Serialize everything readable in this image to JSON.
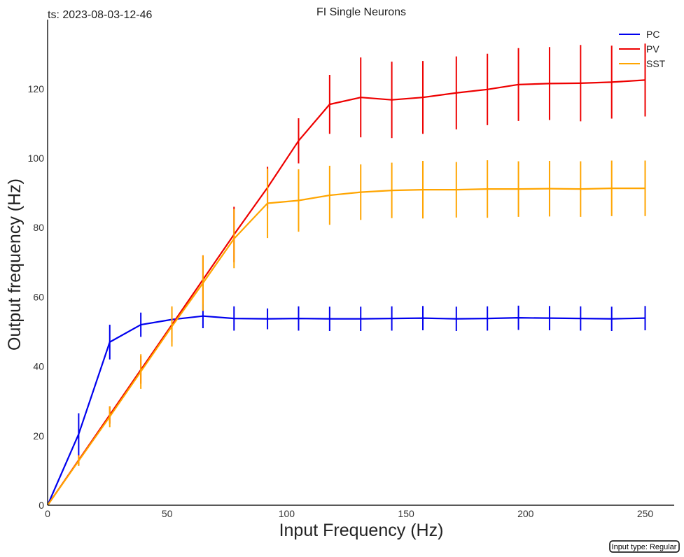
{
  "chart_data": {
    "type": "line",
    "title": "FI Single Neurons",
    "timestamp": "ts: 2023-08-03-12-46",
    "xlabel": "Input Frequency (Hz)",
    "ylabel": "Output frequency (Hz)",
    "footer": "Input type: Regular",
    "xlim": [
      0,
      262
    ],
    "ylim": [
      0,
      140
    ],
    "xticks": [
      0,
      50,
      100,
      150,
      200,
      250
    ],
    "yticks": [
      0,
      20,
      40,
      60,
      80,
      100,
      120
    ],
    "grid": false,
    "legend_position": "top-right",
    "x": [
      0,
      13,
      26,
      39,
      52,
      65,
      78,
      92,
      105,
      118,
      131,
      144,
      157,
      171,
      184,
      197,
      210,
      223,
      236,
      250
    ],
    "series": [
      {
        "name": "PC",
        "color": "#0000ee",
        "values": [
          0,
          20.5,
          47,
          52,
          53.5,
          54.5,
          53.8,
          53.7,
          53.8,
          53.7,
          53.7,
          53.8,
          53.9,
          53.7,
          53.8,
          54.0,
          53.9,
          53.8,
          53.7,
          53.9
        ],
        "errors": [
          0,
          6,
          5,
          3.5,
          2,
          3.5,
          3.5,
          3,
          3.5,
          3.5,
          3.5,
          3.5,
          3.5,
          3.5,
          3.5,
          3.5,
          3.5,
          3.5,
          3.5,
          3.5
        ]
      },
      {
        "name": "PV",
        "color": "#ee0000",
        "values": [
          0,
          13,
          26,
          39,
          52,
          65,
          78,
          91.5,
          105,
          115.5,
          117.5,
          116.8,
          117.5,
          118.8,
          119.8,
          121.2,
          121.5,
          121.6,
          121.9,
          122.5
        ],
        "errors": [
          0,
          1.5,
          2.5,
          4,
          5,
          7,
          8,
          6,
          6.5,
          8.5,
          11.5,
          11,
          10.5,
          10.5,
          10.3,
          10.5,
          10.5,
          11,
          10.5,
          10.5
        ]
      },
      {
        "name": "SST",
        "color": "#ffa500",
        "values": [
          0,
          12.8,
          25.5,
          38.5,
          51.5,
          64,
          76.8,
          87,
          87.8,
          89.3,
          90.2,
          90.7,
          90.9,
          90.9,
          91.1,
          91.1,
          91.2,
          91.1,
          91.3,
          91.3
        ],
        "errors": [
          0,
          1.5,
          3,
          5,
          5.8,
          8,
          8.5,
          10,
          9,
          8.5,
          8,
          8,
          8.3,
          8,
          8.3,
          8,
          8,
          8,
          8,
          8
        ]
      }
    ]
  }
}
